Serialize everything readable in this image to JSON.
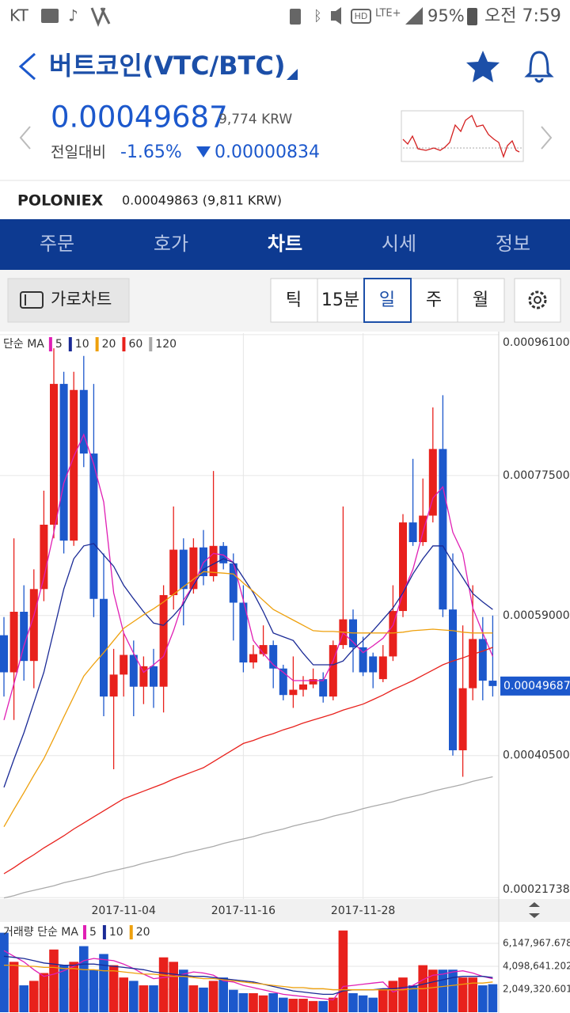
{
  "status_bar": {
    "carrier": "KT",
    "hd": "HD",
    "lte": "LTE+",
    "battery": "95%",
    "time": "오전 7:59"
  },
  "header": {
    "title": "버트코인(VTC/BTC)"
  },
  "price": {
    "last": "0.00049687",
    "krw": "9,774 KRW",
    "change_label": "전일대비",
    "change_pct": "-1.65%",
    "change": "0.00000834"
  },
  "exchange": {
    "name": "POLONIEX",
    "price": "0.00049863 (9,811 KRW)"
  },
  "tabs": [
    "주문",
    "호가",
    "차트",
    "시세",
    "정보"
  ],
  "toolbar": {
    "landscape": "가로차트",
    "periods": [
      "틱",
      "15분",
      "일",
      "주",
      "월"
    ]
  },
  "chart_data": [
    {
      "type": "candlestick",
      "legend_title": "단순 MA",
      "categories": [
        null,
        null,
        null,
        null,
        null,
        null,
        null,
        null,
        null,
        null,
        null,
        null,
        "2017-11-04",
        null,
        null,
        null,
        null,
        null,
        null,
        null,
        null,
        null,
        null,
        null,
        "2017-11-16",
        null,
        null,
        null,
        null,
        null,
        null,
        null,
        null,
        null,
        null,
        null,
        "2017-11-28",
        null,
        null,
        null,
        null,
        null,
        null,
        null,
        null,
        null,
        null,
        null,
        null,
        null
      ],
      "open": [
        0.000564,
        0.000515,
        0.000595,
        0.00053,
        0.000625,
        0.00071,
        0.000896,
        0.000689,
        0.000888,
        0.000804,
        0.000612,
        0.000483,
        0.000512,
        0.000538,
        0.000496,
        0.000523,
        0.000496,
        0.000617,
        0.000677,
        0.000625,
        0.00068,
        0.000642,
        0.000682,
        0.000659,
        0.000607,
        0.000528,
        0.000539,
        0.000551,
        0.00052,
        0.000485,
        0.000492,
        0.000499,
        0.000506,
        0.000483,
        0.000551,
        0.000585,
        0.000548,
        0.000536,
        0.000506,
        0.000536,
        0.000596,
        0.000713,
        0.000687,
        0.000722,
        0.00081,
        0.000598,
        0.000412,
        0.000494,
        0.000559,
        0.000504
      ],
      "high": [
        0.000588,
        0.000692,
        0.00063,
        0.000651,
        0.000755,
        0.000943,
        0.000912,
        0.000912,
        0.000933,
        0.000896,
        0.000672,
        0.000546,
        0.000567,
        0.000557,
        0.000536,
        0.000546,
        0.00063,
        0.000734,
        0.000692,
        0.000692,
        0.000703,
        0.000781,
        0.000687,
        0.000672,
        0.00063,
        0.000551,
        0.000577,
        0.000557,
        0.000525,
        0.000536,
        0.00051,
        0.00052,
        0.000515,
        0.000557,
        0.000734,
        0.000598,
        0.000562,
        0.000541,
        0.000551,
        0.00063,
        0.000724,
        0.000797,
        0.000771,
        0.000865,
        0.000881,
        0.000672,
        0.000577,
        0.00063,
        0.000588,
        0.00059
      ],
      "low": [
        0.000483,
        0.000452,
        0.000504,
        0.000494,
        0.000609,
        0.000692,
        0.000672,
        0.000682,
        0.000786,
        0.000588,
        0.000457,
        0.000387,
        0.000483,
        0.000457,
        0.000473,
        0.000468,
        0.000462,
        0.000598,
        0.000577,
        0.000619,
        0.00063,
        0.000635,
        0.000651,
        0.000557,
        0.000515,
        0.00052,
        0.000536,
        0.000494,
        0.000478,
        0.000468,
        0.000483,
        0.000494,
        0.000475,
        0.000478,
        0.000546,
        0.000515,
        0.00051,
        0.000494,
        0.000502,
        0.00053,
        0.000588,
        0.000682,
        0.000682,
        0.000713,
        0.000588,
        0.000405,
        0.000377,
        0.000478,
        0.000478,
        0.000483
      ],
      "close": [
        0.000515,
        0.000595,
        0.00053,
        0.000625,
        0.00071,
        0.000896,
        0.000689,
        0.000888,
        0.000804,
        0.000612,
        0.000483,
        0.000512,
        0.000538,
        0.000496,
        0.000523,
        0.000496,
        0.000617,
        0.000677,
        0.000625,
        0.00068,
        0.000642,
        0.000682,
        0.000659,
        0.000607,
        0.000528,
        0.000539,
        0.000551,
        0.00052,
        0.000485,
        0.000492,
        0.000499,
        0.000506,
        0.000483,
        0.000551,
        0.000585,
        0.000548,
        0.000515,
        0.000515,
        0.000536,
        0.000596,
        0.000713,
        0.000687,
        0.000722,
        0.00081,
        0.000598,
        0.000412,
        0.000494,
        0.000559,
        0.000504,
        0.00049687
      ],
      "up_color": "#e8211c",
      "down_color": "#1c58cc",
      "series": [
        {
          "name": "5",
          "color": "#e01fb4",
          "values": [
            0.000452,
            0.0005,
            0.00055,
            0.00059,
            0.00064,
            0.0007,
            0.000765,
            0.0008,
            0.000829,
            0.00079,
            0.00074,
            0.00062,
            0.000567,
            0.00054,
            0.000515,
            0.000525,
            0.000536,
            0.00057,
            0.00061,
            0.00063,
            0.00066,
            0.000672,
            0.00067,
            0.00066,
            0.00061,
            0.000557,
            0.00054,
            0.000525,
            0.000515,
            0.000504,
            0.000504,
            0.000504,
            0.000504,
            0.00053,
            0.000567,
            0.000555,
            0.000541,
            0.00055,
            0.00056,
            0.000577,
            0.00062,
            0.000651,
            0.0007,
            0.000745,
            0.00076,
            0.0007,
            0.000672,
            0.0006,
            0.000567,
            0.000536
          ]
        },
        {
          "name": "10",
          "color": "#1a2a96",
          "values": [
            0.000363,
            0.0004,
            0.000435,
            0.000475,
            0.000515,
            0.00057,
            0.000625,
            0.000665,
            0.000682,
            0.000685,
            0.00067,
            0.000655,
            0.00063,
            0.000612,
            0.000595,
            0.00058,
            0.000577,
            0.00059,
            0.000605,
            0.00063,
            0.000651,
            0.000658,
            0.000665,
            0.00066,
            0.00064,
            0.00062,
            0.000595,
            0.000567,
            0.000562,
            0.000557,
            0.00054,
            0.000525,
            0.000525,
            0.000525,
            0.00053,
            0.000545,
            0.000557,
            0.00057,
            0.000585,
            0.0006,
            0.00062,
            0.000645,
            0.000665,
            0.000682,
            0.000682,
            0.00066,
            0.00064,
            0.000619,
            0.000608,
            0.000598
          ]
        },
        {
          "name": "20",
          "color": "#eea00c",
          "values": [
            0.000311,
            0.000334,
            0.000356,
            0.000379,
            0.000401,
            0.000428,
            0.000456,
            0.000483,
            0.00051,
            0.000526,
            0.000541,
            0.000557,
            0.000573,
            0.000582,
            0.000591,
            0.000599,
            0.000608,
            0.000618,
            0.000628,
            0.000638,
            0.000648,
            0.000647,
            0.000646,
            0.000645,
            0.000633,
            0.000622,
            0.00061,
            0.000598,
            0.000591,
            0.000584,
            0.000577,
            0.00057,
            0.000569,
            0.000569,
            0.000568,
            0.000567,
            0.000567,
            0.000567,
            0.000567,
            0.000567,
            0.000568,
            0.00057,
            0.000571,
            0.000572,
            0.000571,
            0.00057,
            0.000568,
            0.000567,
            0.000567,
            0.000567
          ]
        },
        {
          "name": "60",
          "color": "#e8211c",
          "values": [
            0.000249,
            0.000257,
            0.000266,
            0.000274,
            0.000283,
            0.000291,
            0.000299,
            0.000308,
            0.000316,
            0.000324,
            0.000332,
            0.00034,
            0.000348,
            0.000353,
            0.000358,
            0.000363,
            0.000368,
            0.000374,
            0.000379,
            0.000384,
            0.000389,
            0.000397,
            0.000405,
            0.000413,
            0.000421,
            0.000425,
            0.00043,
            0.000434,
            0.000439,
            0.000443,
            0.000448,
            0.000452,
            0.000456,
            0.00046,
            0.000465,
            0.000469,
            0.000473,
            0.000479,
            0.000485,
            0.000492,
            0.000498,
            0.000504,
            0.000511,
            0.000518,
            0.000525,
            0.00053,
            0.000534,
            0.000539,
            0.000543,
            0.000548
          ]
        },
        {
          "name": "120",
          "color": "#aaaaaa",
          "values": [
            0.000217,
            0.00022,
            0.000224,
            0.000227,
            0.00023,
            0.000233,
            0.000237,
            0.00024,
            0.000243,
            0.000246,
            0.00025,
            0.000253,
            0.000256,
            0.000259,
            0.000263,
            0.000266,
            0.000269,
            0.000272,
            0.000276,
            0.000279,
            0.000282,
            0.000285,
            0.000289,
            0.000292,
            0.000295,
            0.000298,
            0.000302,
            0.000305,
            0.000308,
            0.000312,
            0.000315,
            0.000318,
            0.000321,
            0.000325,
            0.000328,
            0.000331,
            0.000335,
            0.000338,
            0.000341,
            0.000344,
            0.000348,
            0.000351,
            0.000354,
            0.000358,
            0.000361,
            0.000364,
            0.000367,
            0.000371,
            0.000374,
            0.000377
          ]
        }
      ],
      "ylim": [
        0.0002155,
        0.000963
      ],
      "yticks": [
        {
          "value": 0.00021738,
          "label": "0.00021738"
        },
        {
          "value": 0.000405,
          "label": "0.00040500"
        },
        {
          "value": 0.00059,
          "label": "0.00059000"
        },
        {
          "value": 0.000775,
          "label": "0.00077500"
        },
        {
          "value": 0.000961,
          "label": "0.00096100"
        }
      ],
      "grid": true
    },
    {
      "type": "bar",
      "legend_title": "거래량 단순 MA",
      "values": [
        7100000,
        4500000,
        2400000,
        2800000,
        3500000,
        5600000,
        4200000,
        4500000,
        5900000,
        3800000,
        5200000,
        4200000,
        3100000,
        2800000,
        2400000,
        2400000,
        4900000,
        4500000,
        3800000,
        2400000,
        2200000,
        2800000,
        3100000,
        2000000,
        1700000,
        1700000,
        1500000,
        1700000,
        1300000,
        1200000,
        1200000,
        1000000,
        1000000,
        1300000,
        7300000,
        1700000,
        1500000,
        1300000,
        2000000,
        2800000,
        3100000,
        2400000,
        4200000,
        3800000,
        3800000,
        3800000,
        3100000,
        3100000,
        2400000,
        2500000
      ],
      "series": [
        {
          "name": "5",
          "color": "#e01fb4",
          "values": [
            5500000,
            5000000,
            4500000,
            3800000,
            3200000,
            3400000,
            3700000,
            4100000,
            4600000,
            4800000,
            4700000,
            4600000,
            4300000,
            3900000,
            3400000,
            3000000,
            3100000,
            3200000,
            3400000,
            3600000,
            3500000,
            3300000,
            2800000,
            2700000,
            2400000,
            2200000,
            2000000,
            1800000,
            1600000,
            1500000,
            1400000,
            1300000,
            1200000,
            1100000,
            2300000,
            2400000,
            2500000,
            2600000,
            2700000,
            1800000,
            2100000,
            2400000,
            2900000,
            3300000,
            3400000,
            3600000,
            3700000,
            3500000,
            3200000,
            3000000
          ]
        },
        {
          "name": "10",
          "color": "#1a2a96",
          "values": [
            5000000,
            4900000,
            4800000,
            4600000,
            4400000,
            4300000,
            4200000,
            4200000,
            4300000,
            4300000,
            4200000,
            4100000,
            4000000,
            3900000,
            3800000,
            3600000,
            3500000,
            3400000,
            3300000,
            3200000,
            3200000,
            3100000,
            3000000,
            2900000,
            2800000,
            2700000,
            2500000,
            2300000,
            2100000,
            1900000,
            1800000,
            1700000,
            1600000,
            1600000,
            1900000,
            2000000,
            2000000,
            2000000,
            2100000,
            2100000,
            2200000,
            2300000,
            2500000,
            2700000,
            2900000,
            3100000,
            3200000,
            3200000,
            3200000,
            3100000
          ]
        },
        {
          "name": "20",
          "color": "#eea00c",
          "values": [
            4200000,
            4200000,
            4100000,
            4100000,
            4000000,
            4000000,
            3900000,
            3900000,
            3800000,
            3800000,
            3700000,
            3700000,
            3600000,
            3500000,
            3400000,
            3400000,
            3300000,
            3200000,
            3200000,
            3100000,
            3000000,
            3000000,
            2900000,
            2800000,
            2700000,
            2600000,
            2500000,
            2400000,
            2300000,
            2200000,
            2200000,
            2100000,
            2100000,
            2000000,
            2000000,
            2000000,
            2000000,
            2000000,
            2000000,
            2000000,
            2000000,
            2100000,
            2100000,
            2200000,
            2300000,
            2400000,
            2500000,
            2600000,
            2600000,
            2700000
          ]
        }
      ],
      "ylim": [
        0,
        8060000
      ],
      "yticks": [
        {
          "value": 2049320.601,
          "label": "2,049,320.601"
        },
        {
          "value": 4098641.202,
          "label": "4,098,641.202"
        },
        {
          "value": 6147967.678,
          "label": "6,147,967.678"
        }
      ],
      "grid": true
    }
  ]
}
